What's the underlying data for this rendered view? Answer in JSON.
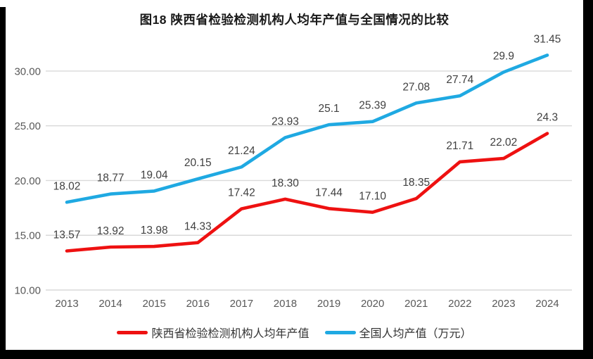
{
  "title": "图18 陕西省检验检测机构人均年产值与全国情况的比较",
  "chart_data": {
    "type": "line",
    "categories": [
      "2013",
      "2014",
      "2015",
      "2016",
      "2017",
      "2018",
      "2019",
      "2020",
      "2021",
      "2022",
      "2023",
      "2024"
    ],
    "series": [
      {
        "name": "陕西省检验检测机构人均年产值",
        "color": "#ee1111",
        "values": [
          13.57,
          13.92,
          13.98,
          14.33,
          17.42,
          18.3,
          17.44,
          17.1,
          18.35,
          21.71,
          22.02,
          24.3
        ],
        "point_labels": [
          "13.57",
          "13.92",
          "13.98",
          "14.33",
          "17.42",
          "18.30",
          "17.44",
          "17.10",
          "18.35",
          "21.71",
          "22.02",
          "24.3"
        ]
      },
      {
        "name": "全国人均产值（万元）",
        "color": "#1fa9e2",
        "values": [
          18.02,
          18.77,
          19.04,
          20.15,
          21.24,
          23.93,
          25.1,
          25.39,
          27.08,
          27.74,
          29.9,
          31.45
        ],
        "point_labels": [
          "18.02",
          "18.77",
          "19.04",
          "20.15",
          "21.24",
          "23.93",
          "25.1",
          "25.39",
          "27.08",
          "27.74",
          "29.9",
          "31.45"
        ]
      }
    ],
    "xlabel": "",
    "ylabel": "",
    "ylim": [
      10,
      32.5
    ],
    "y_ticks": [
      {
        "value": 10,
        "label": "10.00"
      },
      {
        "value": 15,
        "label": "15.00"
      },
      {
        "value": 20,
        "label": "20.00"
      },
      {
        "value": 25,
        "label": "25.00"
      },
      {
        "value": 30,
        "label": "30.00"
      }
    ],
    "grid": "horizontal-only",
    "legend_position": "bottom"
  },
  "colors": {
    "page_background": "#000000",
    "panel_background": "#ffffff",
    "gridline": "#d9d9d9",
    "axis_text": "#595959",
    "data_label_text": "#404040",
    "title_text": "#1a1a1a",
    "legend_text": "#333333"
  }
}
